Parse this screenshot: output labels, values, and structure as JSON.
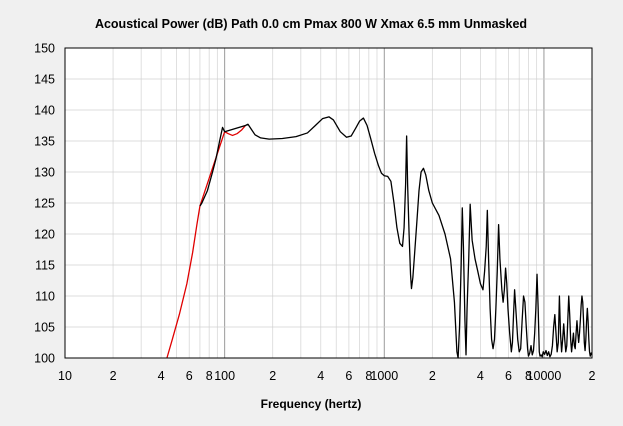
{
  "chart_data": {
    "type": "line",
    "title": "Acoustical Power (dB)   Path 0.0 cm   Pmax 800 W   Xmax 6.5 mm   Unmasked",
    "xlabel": "Frequency (hertz)",
    "ylabel": "",
    "x_scale": "log",
    "xlim": [
      10,
      20000
    ],
    "ylim": [
      100,
      150
    ],
    "grid": true,
    "y_ticks": [
      100,
      105,
      110,
      115,
      120,
      125,
      130,
      135,
      140,
      145,
      150
    ],
    "x_ticks": [
      {
        "value": 10,
        "label": "10"
      },
      {
        "value": 20,
        "label": "2"
      },
      {
        "value": 40,
        "label": "4"
      },
      {
        "value": 60,
        "label": "6"
      },
      {
        "value": 80,
        "label": "8"
      },
      {
        "value": 100,
        "label": "100"
      },
      {
        "value": 200,
        "label": "2"
      },
      {
        "value": 400,
        "label": "4"
      },
      {
        "value": 600,
        "label": "6"
      },
      {
        "value": 800,
        "label": "8"
      },
      {
        "value": 1000,
        "label": "1000"
      },
      {
        "value": 2000,
        "label": "2"
      },
      {
        "value": 4000,
        "label": "4"
      },
      {
        "value": 6000,
        "label": "6"
      },
      {
        "value": 8000,
        "label": "8"
      },
      {
        "value": 10000,
        "label": "10000"
      },
      {
        "value": 20000,
        "label": "2"
      }
    ],
    "series": [
      {
        "color": "#e00000",
        "points": [
          [
            43.5,
            100
          ],
          [
            47,
            103
          ],
          [
            52,
            107
          ],
          [
            58,
            112
          ],
          [
            63,
            117
          ],
          [
            67,
            121.5
          ],
          [
            70,
            124.5
          ],
          [
            100,
            136.5
          ],
          [
            105,
            136.2
          ],
          [
            112,
            135.9
          ],
          [
            120,
            136.2
          ],
          [
            128,
            136.8
          ],
          [
            135,
            137.5
          ]
        ]
      },
      {
        "color": "#000000",
        "points": [
          [
            70,
            124.5
          ],
          [
            72,
            125
          ],
          [
            78,
            127
          ],
          [
            84,
            130
          ],
          [
            88,
            132
          ],
          [
            93,
            135
          ],
          [
            97,
            137.2
          ],
          [
            100,
            136.5
          ],
          [
            135,
            137.5
          ],
          [
            140,
            137.7
          ],
          [
            146,
            137
          ],
          [
            155,
            136
          ],
          [
            168,
            135.5
          ],
          [
            190,
            135.3
          ],
          [
            230,
            135.4
          ],
          [
            280,
            135.7
          ],
          [
            330,
            136.3
          ],
          [
            370,
            137.5
          ],
          [
            410,
            138.6
          ],
          [
            450,
            138.9
          ],
          [
            480,
            138.4
          ],
          [
            530,
            136.5
          ],
          [
            580,
            135.6
          ],
          [
            620,
            135.8
          ],
          [
            660,
            137
          ],
          [
            700,
            138.2
          ],
          [
            740,
            138.7
          ],
          [
            780,
            137.5
          ],
          [
            820,
            135.5
          ],
          [
            870,
            133
          ],
          [
            920,
            131
          ],
          [
            960,
            129.8
          ],
          [
            1000,
            129.4
          ],
          [
            1050,
            129.3
          ],
          [
            1100,
            128.5
          ],
          [
            1150,
            125
          ],
          [
            1200,
            121
          ],
          [
            1250,
            118.5
          ],
          [
            1300,
            118
          ],
          [
            1330,
            121
          ],
          [
            1360,
            128
          ],
          [
            1380,
            135.8
          ],
          [
            1400,
            128
          ],
          [
            1430,
            120
          ],
          [
            1460,
            113.5
          ],
          [
            1480,
            111.2
          ],
          [
            1510,
            113
          ],
          [
            1550,
            117
          ],
          [
            1600,
            122
          ],
          [
            1650,
            127
          ],
          [
            1700,
            130
          ],
          [
            1760,
            130.6
          ],
          [
            1820,
            129.5
          ],
          [
            1900,
            127
          ],
          [
            2000,
            125
          ],
          [
            2200,
            123
          ],
          [
            2400,
            120
          ],
          [
            2600,
            116
          ],
          [
            2750,
            109
          ],
          [
            2850,
            101
          ],
          [
            2900,
            100
          ],
          [
            2960,
            105
          ],
          [
            3030,
            115
          ],
          [
            3080,
            124.2
          ],
          [
            3130,
            118
          ],
          [
            3200,
            106
          ],
          [
            3250,
            100.5
          ],
          [
            3300,
            108
          ],
          [
            3380,
            116
          ],
          [
            3450,
            124.8
          ],
          [
            3550,
            119
          ],
          [
            3700,
            116
          ],
          [
            3850,
            114
          ],
          [
            4000,
            112
          ],
          [
            4150,
            111
          ],
          [
            4250,
            114
          ],
          [
            4350,
            118
          ],
          [
            4420,
            123.8
          ],
          [
            4500,
            116
          ],
          [
            4600,
            108
          ],
          [
            4700,
            103
          ],
          [
            4800,
            101.5
          ],
          [
            4900,
            103
          ],
          [
            5000,
            108
          ],
          [
            5100,
            114
          ],
          [
            5200,
            121.5
          ],
          [
            5300,
            116
          ],
          [
            5450,
            111
          ],
          [
            5550,
            109
          ],
          [
            5650,
            111
          ],
          [
            5750,
            114.5
          ],
          [
            5850,
            112
          ],
          [
            5950,
            108
          ],
          [
            6100,
            104
          ],
          [
            6250,
            101
          ],
          [
            6350,
            102.5
          ],
          [
            6450,
            107
          ],
          [
            6550,
            111
          ],
          [
            6700,
            107
          ],
          [
            6850,
            103
          ],
          [
            7000,
            101
          ],
          [
            7150,
            101.5
          ],
          [
            7300,
            106
          ],
          [
            7450,
            110
          ],
          [
            7600,
            109
          ],
          [
            7750,
            105
          ],
          [
            7900,
            101.5
          ],
          [
            8000,
            100.3
          ],
          [
            8150,
            100.8
          ],
          [
            8300,
            102
          ],
          [
            8450,
            100.5
          ],
          [
            8600,
            101.2
          ],
          [
            8750,
            104
          ],
          [
            8900,
            108
          ],
          [
            9050,
            113.5
          ],
          [
            9200,
            108
          ],
          [
            9350,
            101
          ],
          [
            9450,
            100.3
          ],
          [
            9600,
            100.5
          ],
          [
            9750,
            100.2
          ],
          [
            9900,
            101
          ],
          [
            10100,
            100.6
          ],
          [
            10300,
            101.2
          ],
          [
            10500,
            100.4
          ],
          [
            10700,
            101
          ],
          [
            10900,
            100.2
          ],
          [
            11100,
            100.6
          ],
          [
            11300,
            102
          ],
          [
            11500,
            105
          ],
          [
            11700,
            107
          ],
          [
            11900,
            104
          ],
          [
            12100,
            101
          ],
          [
            12300,
            102.5
          ],
          [
            12500,
            110
          ],
          [
            12700,
            104
          ],
          [
            12900,
            101
          ],
          [
            13100,
            103
          ],
          [
            13300,
            105.5
          ],
          [
            13500,
            103
          ],
          [
            13700,
            101
          ],
          [
            13900,
            102
          ],
          [
            14100,
            106
          ],
          [
            14300,
            110
          ],
          [
            14500,
            107
          ],
          [
            14700,
            103
          ],
          [
            14900,
            101
          ],
          [
            15100,
            102.5
          ],
          [
            15300,
            104
          ],
          [
            15500,
            102
          ],
          [
            15700,
            101.5
          ],
          [
            15900,
            104
          ],
          [
            16100,
            106
          ],
          [
            16300,
            104
          ],
          [
            16500,
            102.5
          ],
          [
            16700,
            104
          ],
          [
            16900,
            106
          ],
          [
            17100,
            108.5
          ],
          [
            17300,
            110
          ],
          [
            17500,
            109
          ],
          [
            17700,
            106
          ],
          [
            17900,
            102.5
          ],
          [
            18100,
            101.2
          ],
          [
            18300,
            103
          ],
          [
            18500,
            106
          ],
          [
            18700,
            108
          ],
          [
            18900,
            106
          ],
          [
            19100,
            103
          ],
          [
            19300,
            101
          ],
          [
            19500,
            100.3
          ],
          [
            19750,
            100.8
          ],
          [
            20000,
            100.5
          ]
        ]
      }
    ]
  }
}
